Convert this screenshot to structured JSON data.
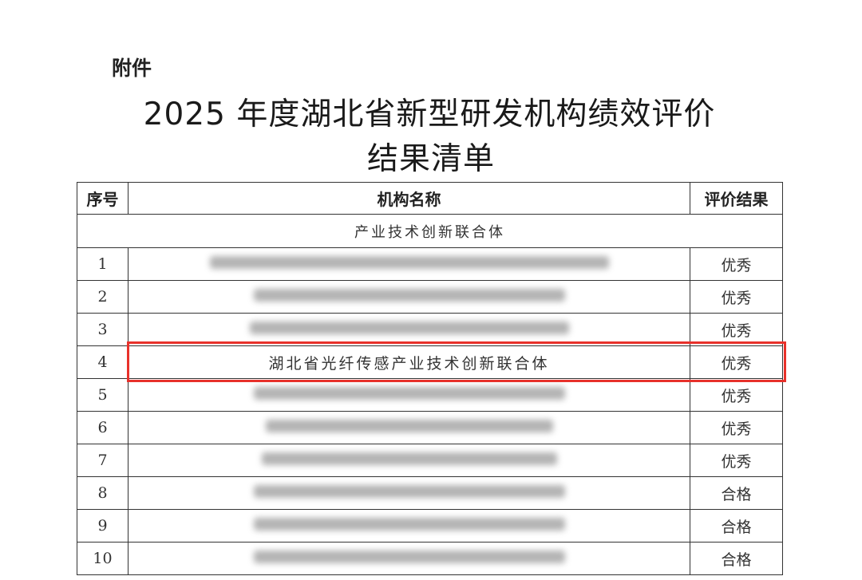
{
  "attachment_label": "附件",
  "title_line1": "2025 年度湖北省新型研发机构绩效评价",
  "title_line2": "结果清单",
  "table": {
    "headers": [
      "序号",
      "机构名称",
      "评价结果"
    ],
    "section": "产业技术创新联合体",
    "rows": [
      {
        "no": "1",
        "name": null,
        "result": "优秀"
      },
      {
        "no": "2",
        "name": null,
        "result": "优秀"
      },
      {
        "no": "3",
        "name": null,
        "result": "优秀"
      },
      {
        "no": "4",
        "name": "湖北省光纤传感产业技术创新联合体",
        "result": "优秀"
      },
      {
        "no": "5",
        "name": null,
        "result": "优秀"
      },
      {
        "no": "6",
        "name": null,
        "result": "优秀"
      },
      {
        "no": "7",
        "name": null,
        "result": "优秀"
      },
      {
        "no": "8",
        "name": null,
        "result": "合格"
      },
      {
        "no": "9",
        "name": null,
        "result": "合格"
      },
      {
        "no": "10",
        "name": null,
        "result": "合格"
      }
    ]
  },
  "highlight_color": "#e8312b"
}
